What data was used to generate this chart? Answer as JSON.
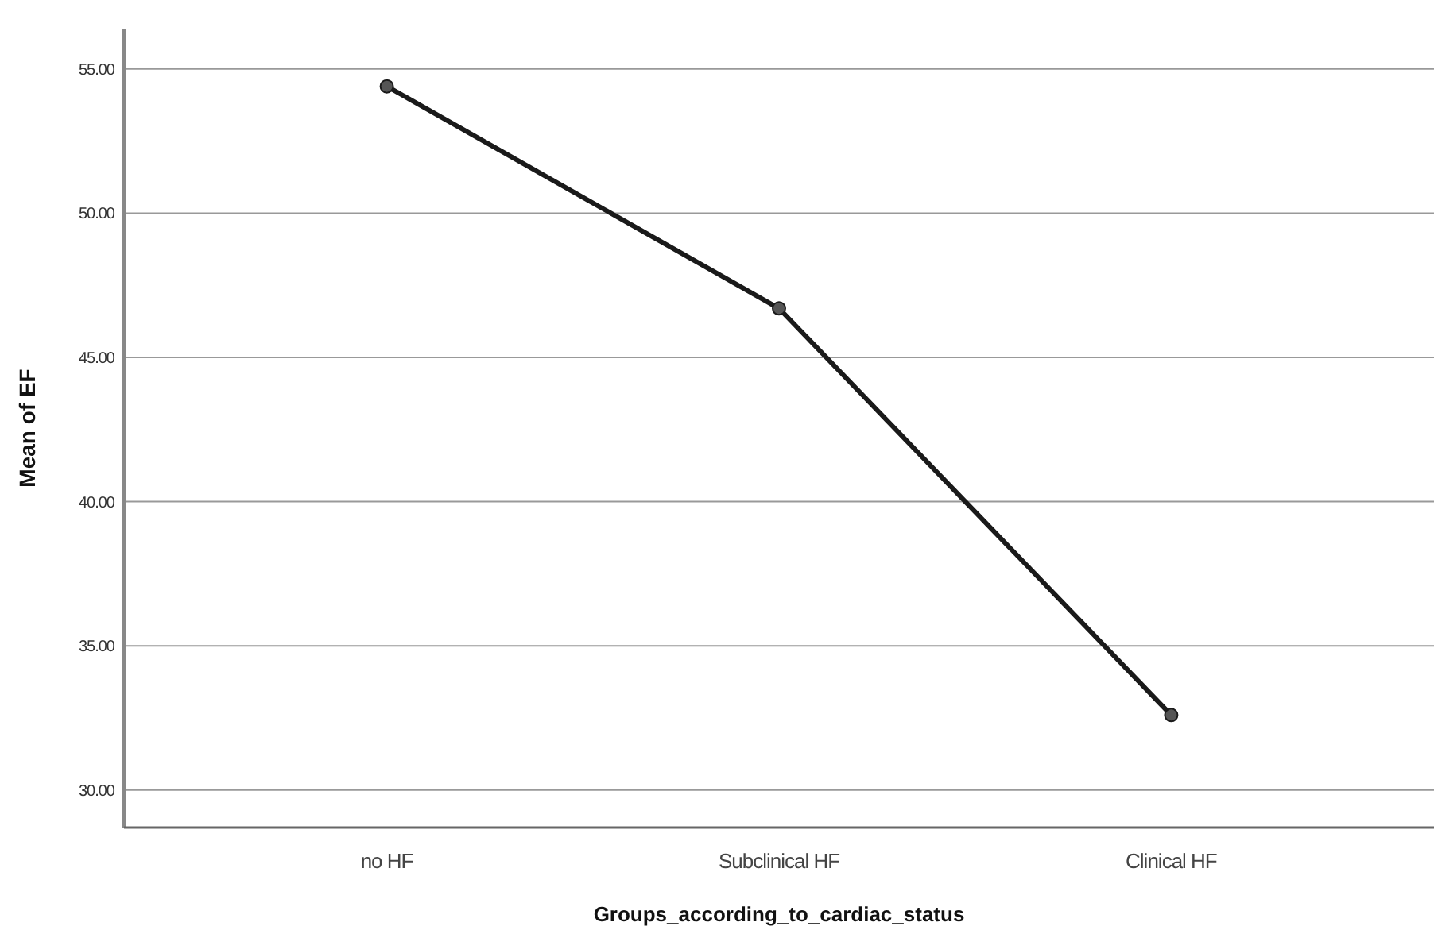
{
  "chart_data": {
    "type": "line",
    "xlabel": "Groups_according_to_cardiac_status",
    "ylabel": "Mean of EF",
    "categories": [
      "no HF",
      "Subclinical HF",
      "Clinical HF"
    ],
    "series": [
      {
        "color": "#1a1a1a",
        "values": [
          54.4,
          46.7,
          32.6
        ]
      }
    ],
    "ylim": [
      28.7,
      56.4
    ],
    "yticks": [
      {
        "value": 30,
        "label": "30.00"
      },
      {
        "value": 35,
        "label": "35.00"
      },
      {
        "value": 40,
        "label": "40.00"
      },
      {
        "value": 45,
        "label": "45.00"
      },
      {
        "value": 50,
        "label": "50.00"
      },
      {
        "value": 55,
        "label": "55.00"
      }
    ],
    "grid": "y",
    "marker": "circle",
    "line_style": "solid"
  }
}
